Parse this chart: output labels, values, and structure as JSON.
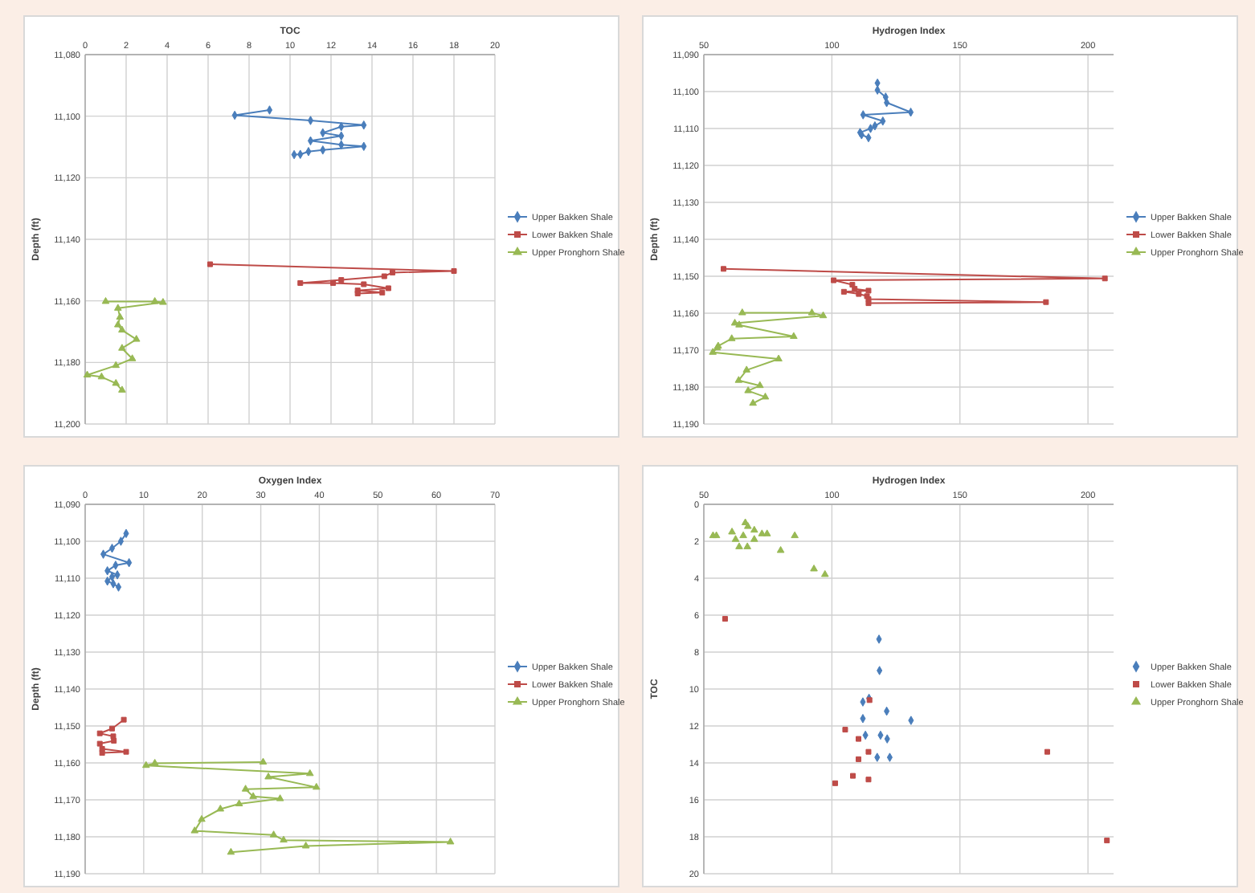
{
  "chart_data": [
    {
      "type": "line",
      "xlabel": "TOC",
      "ylabel": "Depth (ft)",
      "xlim": [
        0,
        20
      ],
      "xticks": [
        0,
        2,
        4,
        6,
        8,
        10,
        12,
        14,
        16,
        18,
        20
      ],
      "ylim": [
        11200,
        11080
      ],
      "yticks": [
        {
          "value": 11080,
          "label": "11,080"
        },
        {
          "value": 11100,
          "label": "11,100"
        },
        {
          "value": 11120,
          "label": "11,120"
        },
        {
          "value": 11140,
          "label": "11,140"
        },
        {
          "value": 11160,
          "label": "11,160"
        },
        {
          "value": 11180,
          "label": "11,180"
        },
        {
          "value": 11200,
          "label": "11,200"
        }
      ],
      "grid": true,
      "legend": "right",
      "series": [
        {
          "name": "Upper Bakken Shale",
          "color": "#4a7ebb",
          "marker": "diamond",
          "x": [
            9.0,
            7.3,
            11.0,
            13.6,
            12.5,
            11.6,
            12.5,
            11.0,
            12.5,
            13.6,
            11.6,
            10.9,
            10.5,
            10.2
          ],
          "values": [
            11098,
            11099.7,
            11101.4,
            11102.9,
            11103.4,
            11105.4,
            11106.4,
            11108,
            11109.3,
            11109.8,
            11111,
            11111.5,
            11112.4,
            11112.5
          ]
        },
        {
          "name": "Lower Bakken Shale",
          "color": "#be4b48",
          "marker": "square",
          "x": [
            6.1,
            18.0,
            15.0,
            14.6,
            12.5,
            10.5,
            12.1,
            13.6,
            14.8,
            13.3,
            14.5,
            13.3
          ],
          "values": [
            11148.1,
            11150.3,
            11150.8,
            11152,
            11153.2,
            11154.2,
            11154.2,
            11154.6,
            11155.9,
            11156.6,
            11157.3,
            11157.6
          ]
        },
        {
          "name": "Upper Pronghorn Shale",
          "color": "#98b954",
          "marker": "triangle",
          "x": [
            1.0,
            3.4,
            3.8,
            1.6,
            1.7,
            1.6,
            1.8,
            2.5,
            1.8,
            2.3,
            1.5,
            0.1,
            0.8,
            1.5,
            1.8
          ],
          "values": [
            11160.2,
            11160.2,
            11160.5,
            11162.4,
            11165.3,
            11167.8,
            11169.5,
            11172.5,
            11175.4,
            11178.8,
            11181,
            11184.1,
            11184.7,
            11186.8,
            11189
          ]
        }
      ]
    },
    {
      "type": "line",
      "xlabel": "Hydrogen Index",
      "ylabel": "Depth (ft)",
      "xlim": [
        50,
        210
      ],
      "xticks": [
        50,
        100,
        150,
        200
      ],
      "ylim": [
        11190,
        11090
      ],
      "yticks": [
        {
          "value": 11090,
          "label": "11,090"
        },
        {
          "value": 11100,
          "label": "11,100"
        },
        {
          "value": 11110,
          "label": "11,110"
        },
        {
          "value": 11120,
          "label": "11,120"
        },
        {
          "value": 11130,
          "label": "11,130"
        },
        {
          "value": 11140,
          "label": "11,140"
        },
        {
          "value": 11150,
          "label": "11,150"
        },
        {
          "value": 11160,
          "label": "11,160"
        },
        {
          "value": 11170,
          "label": "11,170"
        },
        {
          "value": 11180,
          "label": "11,180"
        },
        {
          "value": 11190,
          "label": "11,190"
        }
      ],
      "grid": true,
      "legend": "right",
      "series": [
        {
          "name": "Upper Bakken Shale",
          "color": "#4a7ebb",
          "marker": "diamond",
          "x": [
            117.8,
            117.8,
            121.0,
            121.4,
            130.8,
            112.2,
            119.9,
            116.8,
            115.1,
            111.0,
            111.6,
            114.3
          ],
          "values": [
            11097.7,
            11099.6,
            11101.5,
            11103,
            11105.6,
            11106.3,
            11108,
            11109.3,
            11110,
            11111.1,
            11111.7,
            11112.5
          ]
        },
        {
          "name": "Lower Bakken Shale",
          "color": "#be4b48",
          "marker": "square",
          "x": [
            57.7,
            206.6,
            100.7,
            108.0,
            108.9,
            114.3,
            104.7,
            110.5,
            113.7,
            114.3,
            183.6,
            114.3
          ],
          "values": [
            11148,
            11150.6,
            11151.1,
            11152.3,
            11153.4,
            11153.9,
            11154.2,
            11154.8,
            11155.4,
            11156.2,
            11157,
            11157.3
          ]
        },
        {
          "name": "Upper Pronghorn Shale",
          "color": "#98b954",
          "marker": "triangle",
          "x": [
            65.0,
            92.2,
            96.6,
            62.1,
            63.8,
            85.1,
            60.9,
            55.6,
            55.2,
            53.5,
            79.2,
            66.7,
            63.6,
            71.9,
            67.3,
            74.0,
            69.2
          ],
          "values": [
            11159.9,
            11159.9,
            11160.7,
            11162.7,
            11163.2,
            11166.3,
            11166.9,
            11168.9,
            11169.4,
            11170.6,
            11172.4,
            11175.4,
            11178.2,
            11179.6,
            11181,
            11182.7,
            11184.4
          ]
        }
      ]
    },
    {
      "type": "line",
      "xlabel": "Oxygen Index",
      "ylabel": "Depth (ft)",
      "xlim": [
        0,
        70
      ],
      "xticks": [
        0,
        10,
        20,
        30,
        40,
        50,
        60,
        70
      ],
      "ylim": [
        11190,
        11090
      ],
      "yticks": [
        {
          "value": 11090,
          "label": "11,090"
        },
        {
          "value": 11100,
          "label": "11,100"
        },
        {
          "value": 11110,
          "label": "11,110"
        },
        {
          "value": 11120,
          "label": "11,120"
        },
        {
          "value": 11130,
          "label": "11,130"
        },
        {
          "value": 11140,
          "label": "11,140"
        },
        {
          "value": 11150,
          "label": "11,150"
        },
        {
          "value": 11160,
          "label": "11,160"
        },
        {
          "value": 11170,
          "label": "11,170"
        },
        {
          "value": 11180,
          "label": "11,180"
        },
        {
          "value": 11190,
          "label": "11,190"
        }
      ],
      "grid": true,
      "legend": "right",
      "series": [
        {
          "name": "Upper Bakken Shale",
          "color": "#4a7ebb",
          "marker": "diamond",
          "x": [
            7.0,
            6.1,
            4.6,
            3.1,
            7.5,
            5.2,
            3.8,
            5.5,
            4.6,
            3.8,
            4.8,
            5.7
          ],
          "values": [
            11097.9,
            11100,
            11101.9,
            11103.5,
            11105.8,
            11106.5,
            11108,
            11109.1,
            11109.6,
            11110.8,
            11111.5,
            11112.4
          ]
        },
        {
          "name": "Lower Bakken Shale",
          "color": "#be4b48",
          "marker": "square",
          "x": [
            6.6,
            4.6,
            2.5,
            4.8,
            4.9,
            2.5,
            2.9,
            7.0,
            2.9
          ],
          "values": [
            11148.3,
            11150.7,
            11152,
            11152.8,
            11154,
            11154.8,
            11156.2,
            11157,
            11157.3
          ]
        },
        {
          "name": "Upper Pronghorn Shale",
          "color": "#98b954",
          "marker": "triangle",
          "x": [
            30.4,
            11.9,
            10.4,
            38.4,
            31.3,
            39.5,
            27.4,
            28.7,
            33.3,
            26.3,
            23.1,
            19.9,
            18.7,
            32.2,
            33.9,
            62.4,
            37.7,
            24.9
          ],
          "values": [
            11159.8,
            11160.1,
            11160.7,
            11162.9,
            11163.8,
            11166.6,
            11167.1,
            11169.1,
            11169.7,
            11171.1,
            11172.5,
            11175.3,
            11178.4,
            11179.5,
            11180.9,
            11181.4,
            11182.5,
            11184.2
          ]
        }
      ]
    },
    {
      "type": "scatter",
      "xlabel": "Hydrogen Index",
      "ylabel": "TOC",
      "xlim": [
        50,
        210
      ],
      "xticks": [
        50,
        100,
        150,
        200
      ],
      "ylim": [
        20,
        0
      ],
      "yticks": [
        0,
        2,
        4,
        6,
        8,
        10,
        12,
        14,
        16,
        18,
        20
      ],
      "grid": true,
      "legend": "right",
      "series": [
        {
          "name": "Upper Bakken Shale",
          "color": "#4a7ebb",
          "marker": "diamond",
          "x": [
            118.4,
            118.6,
            112.1,
            114.5,
            121.4,
            130.9,
            112.1,
            113.1,
            119.0,
            121.6,
            117.7,
            122.6
          ],
          "values": [
            7.3,
            9.0,
            10.7,
            10.5,
            11.2,
            11.7,
            11.6,
            12.5,
            12.5,
            12.7,
            13.7,
            13.7
          ]
        },
        {
          "name": "Lower Bakken Shale",
          "color": "#be4b48",
          "marker": "square",
          "x": [
            58.3,
            114.7,
            105.2,
            110.4,
            114.3,
            110.4,
            184.1,
            108.2,
            114.3,
            101.3,
            207.4
          ],
          "values": [
            6.2,
            10.6,
            12.2,
            12.7,
            13.4,
            13.8,
            13.4,
            14.7,
            14.9,
            15.1,
            18.2
          ]
        },
        {
          "name": "Upper Pronghorn Shale",
          "color": "#98b954",
          "marker": "triangle",
          "x": [
            53.6,
            54.9,
            61.0,
            62.4,
            63.8,
            65.4,
            66.2,
            67.2,
            67.0,
            69.7,
            69.7,
            72.7,
            74.7,
            80.0,
            85.5,
            93.0,
            97.3
          ],
          "values": [
            1.7,
            1.7,
            1.5,
            1.9,
            2.3,
            1.7,
            1.0,
            1.2,
            2.3,
            1.4,
            1.9,
            1.6,
            1.6,
            2.5,
            1.7,
            3.5,
            3.8
          ]
        }
      ]
    }
  ]
}
